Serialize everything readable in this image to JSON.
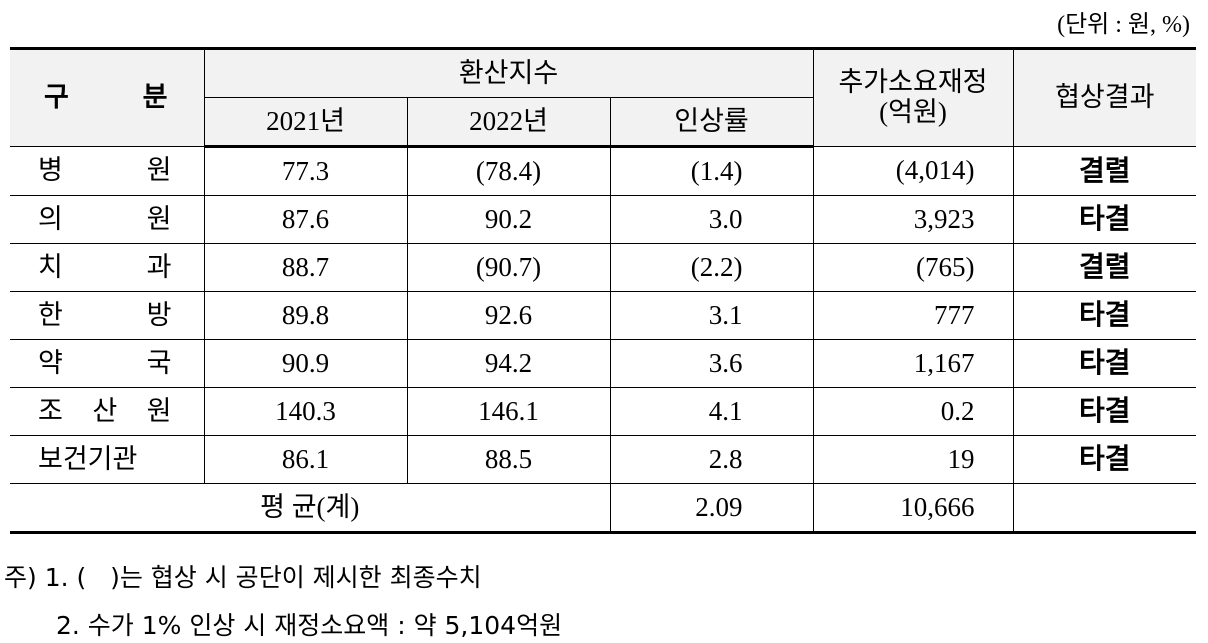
{
  "unit_note": "(단위 : 원, %)",
  "table": {
    "header": {
      "category": "구 분",
      "index_group": "환산지수",
      "year1": "2021년",
      "year2": "2022년",
      "rate": "인상률",
      "extra_cost": "추가소요재정",
      "extra_cost_unit": "(억원)",
      "result": "협상결과"
    },
    "rows": [
      [
        "병 원",
        "77.3",
        "(78.4)",
        "(1.4)",
        "(4,014)",
        "결렬"
      ],
      [
        "의 원",
        "87.6",
        "90.2",
        "3.0",
        "3,923",
        "타결"
      ],
      [
        "치 과",
        "88.7",
        "(90.7)",
        "(2.2)",
        "(765)",
        "결렬"
      ],
      [
        "한 방",
        "89.8",
        "92.6",
        "3.1",
        "777",
        "타결"
      ],
      [
        "약 국",
        "90.9",
        "94.2",
        "3.6",
        "1,167",
        "타결"
      ],
      [
        "조 산 원",
        "140.3",
        "146.1",
        "4.1",
        "0.2",
        "타결"
      ],
      [
        "보건기관",
        "86.1",
        "88.5",
        "2.8",
        "19",
        "타결"
      ]
    ],
    "average": {
      "label": "평 균(계)",
      "rate": "2.09",
      "extra_cost": "10,666"
    }
  },
  "notes": [
    "주) 1. (   )는 협상 시 공단이 제시한 최종수치",
    "2. 수가 1% 인상 시 재정소요액 : 약 5,104억원"
  ]
}
